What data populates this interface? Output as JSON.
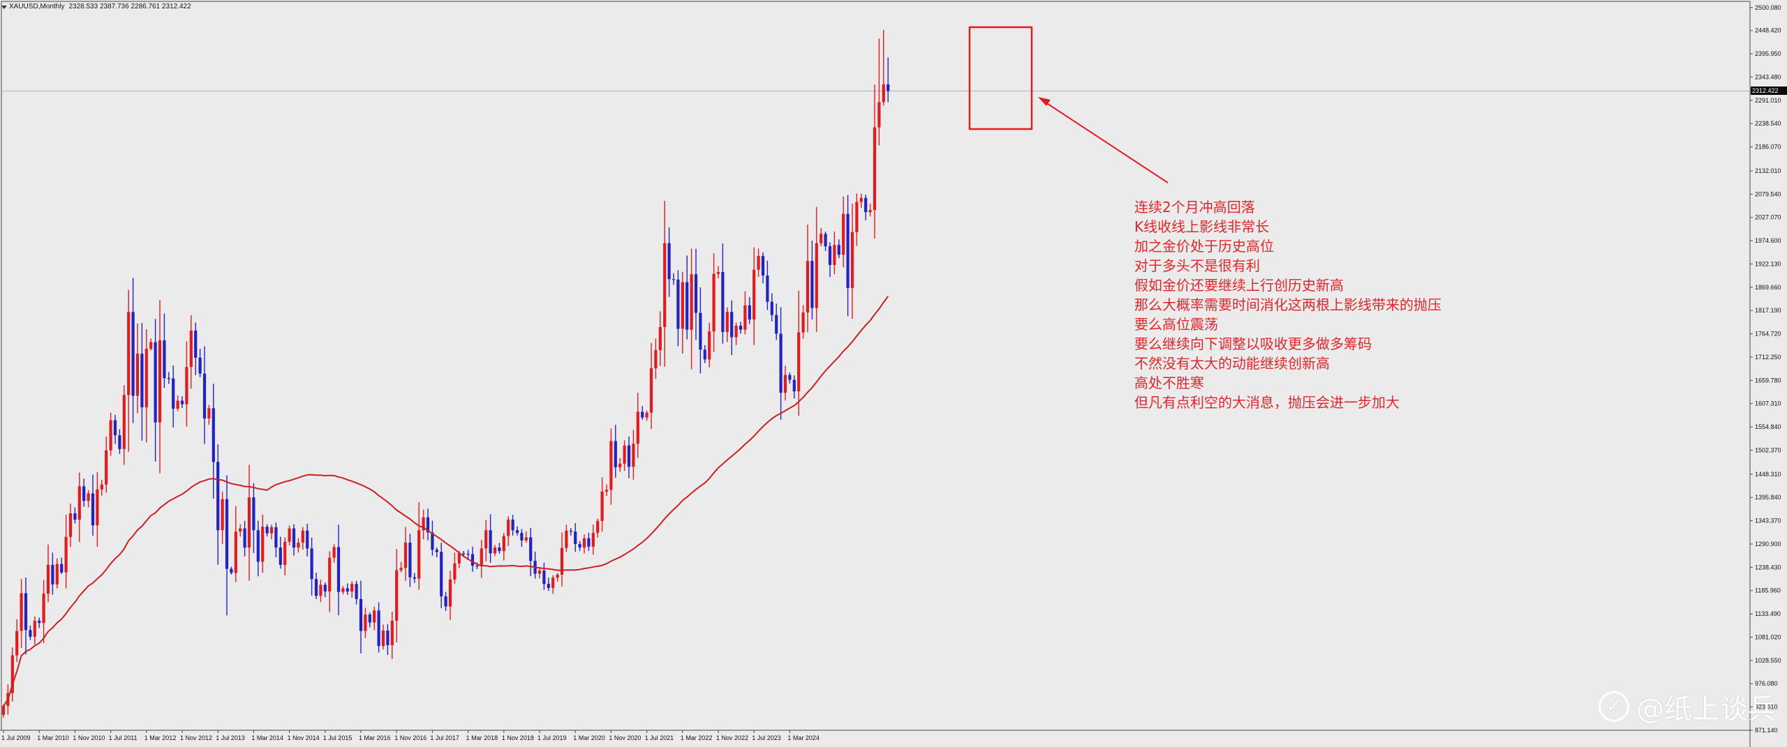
{
  "header": {
    "symbol": "XAUUSD,Monthly",
    "ohlc": "2328.533 2387.736 2286.761 2312.422"
  },
  "current_price_label": "2312.422",
  "annotation_lines": [
    "连续2个月冲高回落",
    "K线收线上影线非常长",
    "加之金价处于历史高位",
    "对于多头不是很有利",
    "假如金价还要继续上行创历史新高",
    "那么大概率需要时间消化这两根上影线带来的抛压",
    "要么高位震荡",
    "要么继续向下调整以吸收更多做多筹码",
    "不然没有太大的动能继续创新高",
    "高处不胜寒",
    "但凡有点利空的大消息，抛压会进一步加大"
  ],
  "watermark": "@纸上谈兵",
  "colors": {
    "bull": "#e41a1c",
    "bear": "#1f22c8",
    "ma": "#cc1f1f",
    "annotation": "#e0262a",
    "background": "#ebebeb"
  },
  "chart_data": {
    "type": "candlestick",
    "timeframe": "Monthly",
    "ylim": [
      871.14,
      2514
    ],
    "y_ticks": [
      "2500.080",
      "2448.420",
      "2395.950",
      "2343.480",
      "2291.010",
      "2238.540",
      "2186.070",
      "2132.010",
      "2079.540",
      "2027.070",
      "1974.600",
      "1922.130",
      "1869.660",
      "1817.190",
      "1764.720",
      "1712.250",
      "1659.780",
      "1607.310",
      "1554.840",
      "1502.370",
      "1448.310",
      "1395.840",
      "1343.370",
      "1290.900",
      "1238.430",
      "1185.960",
      "1133.490",
      "1081.020",
      "1028.550",
      "976.080",
      "923.610",
      "871.140"
    ],
    "x_ticks": [
      "1 Jul 2009",
      "1 Mar 2010",
      "1 Nov 2010",
      "1 Jul 2011",
      "1 Mar 2012",
      "1 Nov 2012",
      "1 Jul 2013",
      "1 Mar 2014",
      "1 Nov 2014",
      "1 Jul 2015",
      "1 Mar 2016",
      "1 Nov 2016",
      "1 Jul 2017",
      "1 Mar 2018",
      "1 Nov 2018",
      "1 Jul 2019",
      "1 Mar 2020",
      "1 Nov 2020",
      "1 Jul 2021",
      "1 Mar 2022",
      "1 Nov 2022",
      "1 Jul 2023",
      "1 Mar 2024"
    ],
    "closes": [
      926,
      955,
      1040,
      1095,
      1180,
      1097,
      1082,
      1118,
      1113,
      1179,
      1244,
      1200,
      1246,
      1227,
      1307,
      1360,
      1346,
      1421,
      1388,
      1405,
      1333,
      1414,
      1425,
      1502,
      1570,
      1536,
      1505,
      1627,
      1814,
      1625,
      1720,
      1599,
      1731,
      1746,
      1565,
      1750,
      1665,
      1664,
      1596,
      1614,
      1606,
      1690,
      1772,
      1711,
      1675,
      1574,
      1597,
      1476,
      1322,
      1392,
      1235,
      1226,
      1319,
      1326,
      1283,
      1396,
      1322,
      1251,
      1330,
      1315,
      1329,
      1283,
      1244,
      1296,
      1326,
      1283,
      1294,
      1321,
      1281,
      1212,
      1174,
      1199,
      1184,
      1260,
      1284,
      1183,
      1191,
      1184,
      1201,
      1167,
      1095,
      1132,
      1114,
      1141,
      1061,
      1096,
      1063,
      1118,
      1232,
      1237,
      1294,
      1216,
      1213,
      1322,
      1351,
      1317,
      1278,
      1273,
      1173,
      1150,
      1211,
      1247,
      1270,
      1269,
      1268,
      1242,
      1241,
      1281,
      1322,
      1270,
      1283,
      1275,
      1309,
      1346,
      1322,
      1316,
      1299,
      1306,
      1253,
      1224,
      1231,
      1201,
      1192,
      1215,
      1222,
      1282,
      1321,
      1319,
      1291,
      1283,
      1304,
      1285,
      1316,
      1343,
      1409,
      1413,
      1523,
      1464,
      1472,
      1513,
      1465,
      1517,
      1589,
      1576,
      1587,
      1687,
      1728,
      1780,
      1969,
      1888,
      1887,
      1776,
      1881,
      1774,
      1899,
      1812,
      1729,
      1707,
      1770,
      1900,
      1904,
      1769,
      1814,
      1757,
      1783,
      1774,
      1829,
      1797,
      1909,
      1940,
      1896,
      1837,
      1807,
      1765,
      1632,
      1672,
      1661,
      1635,
      1768,
      1813,
      1929,
      1823,
      1969,
      1990,
      1962,
      1920,
      1965,
      1943,
      2035,
      1868,
      1994,
      2062,
      2071,
      2039,
      2044,
      2230,
      2287,
      2327,
      2312
    ]
  }
}
